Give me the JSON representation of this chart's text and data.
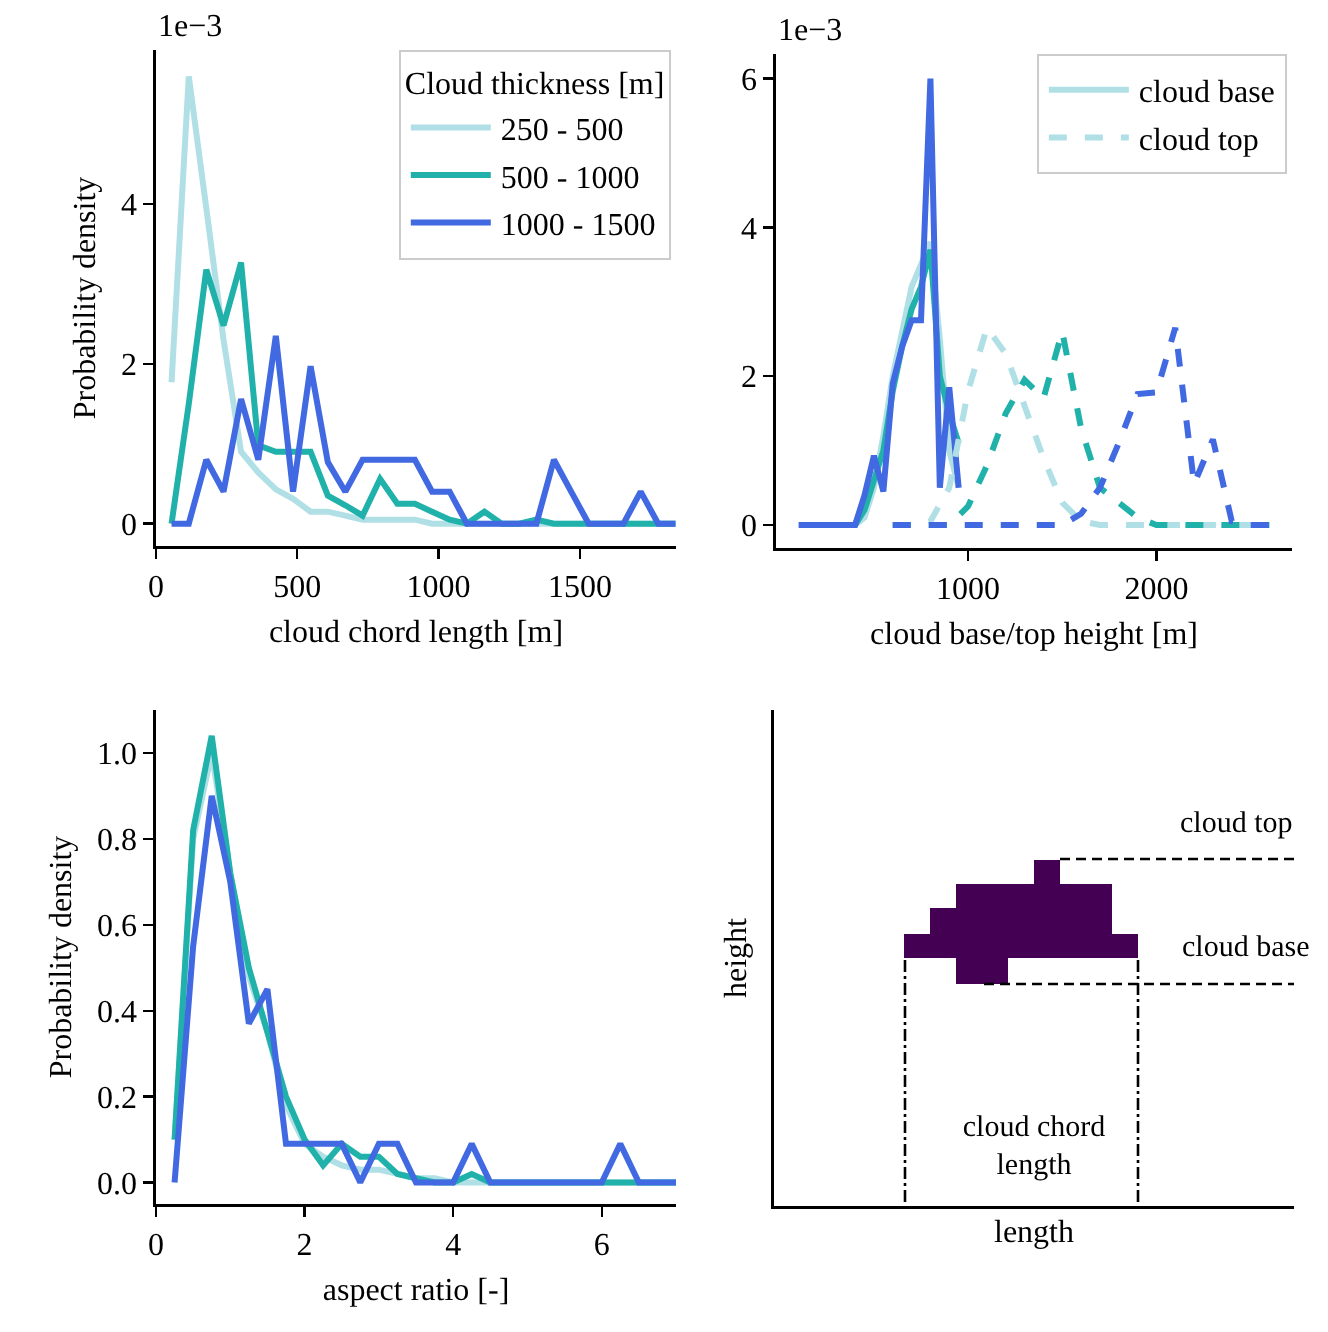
{
  "chart_data": [
    {
      "type": "line",
      "xlabel": "cloud chord length [m]",
      "ylabel": "Probability density",
      "legend_title": "Cloud thickness [m]",
      "legend": "top right",
      "annotations": [
        "1e−3"
      ],
      "xlim": [
        0,
        1840
      ],
      "ylim": [
        -0.28,
        5.93
      ],
      "xticks": [
        0,
        500,
        1000,
        1500
      ],
      "yticks": [
        0,
        2,
        4
      ],
      "x": [
        55,
        116,
        178,
        239,
        301,
        362,
        424,
        485,
        547,
        608,
        670,
        731,
        793,
        854,
        916,
        977,
        1039,
        1100,
        1162,
        1223,
        1285,
        1346,
        1408,
        1469,
        1531,
        1592,
        1654,
        1715,
        1777,
        1838
      ],
      "series": [
        {
          "name": "250 - 500",
          "color": "#b0e0e6",
          "values": [
            1.77,
            5.6,
            3.95,
            2.3,
            0.9,
            0.64,
            0.43,
            0.31,
            0.15,
            0.15,
            0.1,
            0.05,
            0.05,
            0.05,
            0.05,
            0,
            0,
            0,
            0,
            0,
            0,
            0,
            0,
            0,
            0,
            0,
            0,
            0,
            0,
            0
          ]
        },
        {
          "name": "500 - 1000",
          "color": "#20b2aa",
          "values": [
            0,
            1.5,
            3.18,
            2.48,
            3.27,
            0.98,
            0.9,
            0.9,
            0.9,
            0.35,
            0.23,
            0.1,
            0.56,
            0.25,
            0.25,
            0.15,
            0.05,
            0,
            0.15,
            0,
            0,
            0.05,
            0,
            0,
            0,
            0,
            0,
            0,
            0,
            0
          ]
        },
        {
          "name": "1000 - 1500",
          "color": "#4169e1",
          "values": [
            0,
            0,
            0.8,
            0.4,
            1.56,
            0.8,
            2.35,
            0.4,
            1.97,
            0.77,
            0.4,
            0.8,
            0.8,
            0.8,
            0.8,
            0.4,
            0.4,
            0,
            0,
            0,
            0,
            0,
            0.8,
            0.4,
            0,
            0,
            0,
            0.4,
            0,
            0
          ]
        }
      ]
    },
    {
      "type": "line",
      "xlabel": "cloud base/top height [m]",
      "legend": "top right",
      "annotations": [
        "1e−3"
      ],
      "xlim": [
        -20,
        2720
      ],
      "ylim": [
        -0.31,
        6.33
      ],
      "xticks": [
        1000,
        2000
      ],
      "yticks": [
        0,
        2,
        4,
        6
      ],
      "series": [
        {
          "name": "cloud base",
          "color": "#b0e0e6",
          "line_style": "solid",
          "x": [
            300,
            350,
            400,
            450,
            500,
            550,
            600,
            650,
            700,
            750,
            800,
            850,
            900,
            950
          ],
          "values": [
            0,
            0,
            0,
            0.1,
            0.5,
            1.2,
            2.0,
            2.6,
            3.2,
            3.5,
            3.8,
            2.5,
            1.0,
            0.5
          ]
        },
        {
          "color": "#20b2aa",
          "line_style": "solid",
          "x": [
            350,
            400,
            450,
            500,
            550,
            600,
            650,
            700,
            750,
            800,
            850,
            900,
            950
          ],
          "values": [
            0,
            0,
            0.2,
            0.6,
            1.0,
            1.8,
            2.4,
            2.9,
            3.2,
            3.7,
            2.0,
            1.5,
            1.1
          ]
        },
        {
          "color": "#4169e1",
          "line_style": "solid",
          "x": [
            100,
            150,
            200,
            250,
            300,
            350,
            400,
            450,
            500,
            550,
            600,
            650,
            700,
            750,
            800,
            850,
            900,
            950
          ],
          "values": [
            0,
            0,
            0,
            0,
            0,
            0,
            0,
            0.4,
            0.93,
            0.45,
            1.9,
            2.4,
            2.75,
            2.75,
            6.0,
            0.5,
            1.85,
            0.5
          ]
        },
        {
          "name": "cloud top",
          "color": "#b0e0e6",
          "line_style": "dashed",
          "x": [
            600,
            700,
            800,
            900,
            1000,
            1100,
            1200,
            1300,
            1400,
            1500,
            1600,
            1700,
            1800,
            1900,
            2000,
            2100,
            2200,
            2300,
            2400,
            2500,
            2600
          ],
          "values": [
            0,
            0,
            0.05,
            0.5,
            1.8,
            2.65,
            2.3,
            1.6,
            0.9,
            0.3,
            0.05,
            0,
            0,
            0,
            0,
            0,
            0,
            0,
            0,
            0,
            0
          ]
        },
        {
          "color": "#20b2aa",
          "line_style": "dashed",
          "x": [
            600,
            700,
            800,
            900,
            1000,
            1100,
            1200,
            1300,
            1400,
            1500,
            1600,
            1700,
            1800,
            1900,
            2000,
            2100,
            2200,
            2300,
            2400,
            2500,
            2600
          ],
          "values": [
            0,
            0,
            0,
            0,
            0.25,
            0.8,
            1.5,
            1.95,
            1.7,
            2.6,
            1.3,
            0.5,
            0.3,
            0.1,
            0,
            0,
            0,
            0,
            0,
            0,
            0
          ]
        },
        {
          "color": "#4169e1",
          "line_style": "dashed",
          "x": [
            600,
            700,
            800,
            900,
            1000,
            1100,
            1200,
            1300,
            1400,
            1500,
            1600,
            1700,
            1800,
            1900,
            2000,
            2100,
            2200,
            2300,
            2400,
            2500,
            2600
          ],
          "values": [
            0,
            0,
            0,
            0,
            0,
            0,
            0,
            0,
            0,
            0,
            0.15,
            0.5,
            1.1,
            1.76,
            1.78,
            2.65,
            0.55,
            1.15,
            0.05,
            0,
            0
          ]
        }
      ]
    },
    {
      "type": "line",
      "xlabel": "aspect ratio [-]",
      "ylabel": "Probability density",
      "xlim": [
        0,
        7
      ],
      "ylim": [
        -0.05,
        1.1
      ],
      "xticks": [
        0,
        2,
        4,
        6
      ],
      "yticks": [
        {
          "value": 0,
          "label": "0.0"
        },
        {
          "value": 0.2,
          "label": "0.2"
        },
        {
          "value": 0.4,
          "label": "0.4"
        },
        {
          "value": 0.6,
          "label": "0.6"
        },
        {
          "value": 0.8,
          "label": "0.8"
        },
        {
          "value": 1,
          "label": "1.0"
        }
      ],
      "x": [
        0.25,
        0.5,
        0.75,
        1,
        1.25,
        1.5,
        1.75,
        2,
        2.25,
        2.5,
        2.75,
        3,
        3.25,
        3.5,
        3.75,
        4,
        4.25,
        4.5,
        4.75,
        5,
        5.25,
        5.5,
        5.75,
        6,
        6.25,
        6.5,
        6.75,
        7
      ],
      "series": [
        {
          "color": "#b0e0e6",
          "values": [
            0.1,
            0.8,
            1.0,
            0.72,
            0.48,
            0.35,
            0.18,
            0.09,
            0.06,
            0.04,
            0.03,
            0.03,
            0.02,
            0.01,
            0.01,
            0,
            0,
            0,
            0,
            0,
            0,
            0,
            0,
            0,
            0,
            0,
            0,
            0
          ]
        },
        {
          "color": "#20b2aa",
          "values": [
            0.1,
            0.82,
            1.04,
            0.72,
            0.5,
            0.35,
            0.2,
            0.1,
            0.04,
            0.09,
            0.06,
            0.06,
            0.02,
            0.01,
            0,
            0,
            0.02,
            0,
            0,
            0,
            0,
            0,
            0,
            0,
            0,
            0,
            0,
            0
          ]
        },
        {
          "color": "#4169e1",
          "values": [
            0,
            0.55,
            0.9,
            0.7,
            0.37,
            0.45,
            0.09,
            0.09,
            0.09,
            0.09,
            0,
            0.09,
            0.09,
            0,
            0,
            0,
            0.09,
            0,
            0,
            0,
            0,
            0,
            0,
            0,
            0.09,
            0,
            0,
            0
          ]
        }
      ]
    },
    {
      "type": "other",
      "xlabel": "length",
      "ylabel": "height",
      "annotations": [
        "cloud top",
        "cloud base",
        "cloud chord length"
      ]
    }
  ]
}
